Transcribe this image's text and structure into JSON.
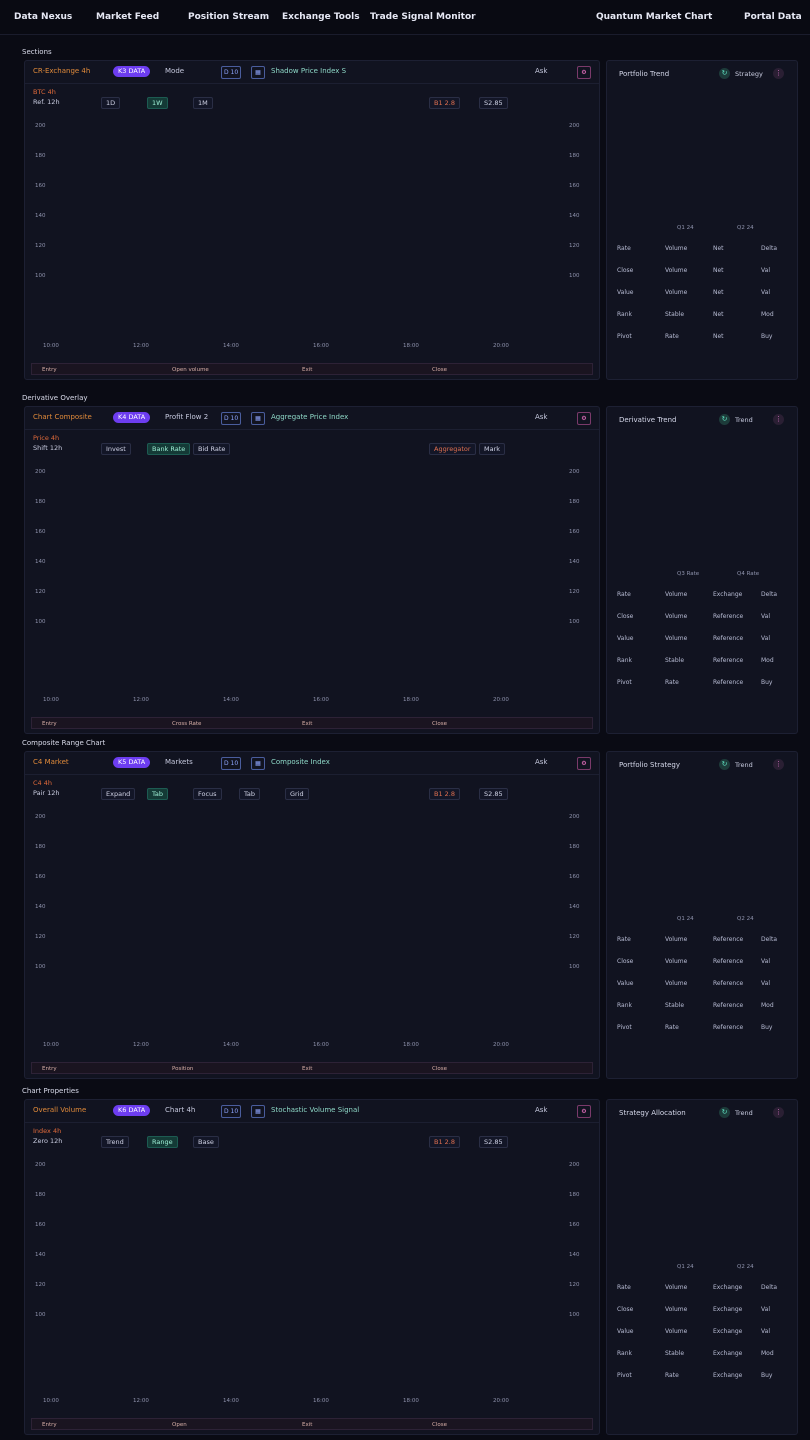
{
  "nav": {
    "items": [
      "Data Nexus",
      "Market Feed",
      "Position Stream",
      "Exchange Tools",
      "Trade Signal Monitor",
      "Quantum Market Chart",
      "Portal Data"
    ]
  },
  "colors": {
    "bg": "#0a0b14",
    "panel": "#111320",
    "purple": "#6d3df0",
    "orange": "#f4a11f",
    "violet": "#8a78ff",
    "green": "#3fe0a0",
    "teal": "#37d9c0",
    "red": "#e04050",
    "pink": "#d24fd0"
  },
  "sections": [
    {
      "title": "Sections",
      "toolbar": {
        "symbol": "CR-Exchange 4h",
        "pill": "K3 DATA",
        "mode": "Mode",
        "mode_val": "D 10",
        "series": "Shadow Price Index S",
        "ask": "Ask"
      },
      "info": [
        "BTC 4h",
        "Ref. 12h"
      ],
      "buttons": [
        "1D",
        "1W",
        "1M"
      ],
      "pairs": [
        "B1 2.8",
        "S2.85"
      ],
      "bottom": [
        "Entry",
        "Open volume",
        "Exit",
        "Close"
      ],
      "ylabels": [
        "200",
        "180",
        "160",
        "140",
        "120",
        "100"
      ],
      "xlabels": [
        "10:00",
        "12:00",
        "14:00",
        "16:00",
        "18:00",
        "20:00"
      ],
      "side": {
        "title": "Portfolio Trend",
        "label": "Strategy",
        "foot": [
          "Q1 24",
          "Q2 24"
        ],
        "rows": [
          [
            "Rate",
            "Volume",
            "Net",
            "Delta"
          ],
          [
            "Close",
            "Volume",
            "Net",
            "Val"
          ],
          [
            "Value",
            "Volume",
            "Net",
            "Val"
          ],
          [
            "Rank",
            "Stable",
            "Net",
            "Mod"
          ],
          [
            "Pivot",
            "Rate",
            "Net",
            "Buy"
          ]
        ]
      }
    },
    {
      "title": "Derivative Overlay",
      "toolbar": {
        "symbol": "Chart Composite",
        "pill": "K4 DATA",
        "mode": "Profit Flow 2",
        "mode_val": "D 10",
        "series": "Aggregate Price Index",
        "ask": "Ask"
      },
      "info": [
        "Price 4h",
        "Shift 12h"
      ],
      "buttons": [
        "Invest",
        "Bank Rate",
        "Bid Rate"
      ],
      "pairs": [
        "Aggregator",
        "Mark"
      ],
      "bottom": [
        "Entry",
        "Cross Rate",
        "Exit",
        "Close"
      ],
      "ylabels": [
        "200",
        "180",
        "160",
        "140",
        "120",
        "100"
      ],
      "xlabels": [
        "10:00",
        "12:00",
        "14:00",
        "16:00",
        "18:00",
        "20:00"
      ],
      "side": {
        "title": "Derivative Trend",
        "label": "Trend",
        "foot": [
          "Q3 Rate",
          "Q4 Rate"
        ],
        "rows": [
          [
            "Rate",
            "Volume",
            "Exchange",
            "Delta"
          ],
          [
            "Close",
            "Volume",
            "Reference",
            "Val"
          ],
          [
            "Value",
            "Volume",
            "Reference",
            "Val"
          ],
          [
            "Rank",
            "Stable",
            "Reference",
            "Mod"
          ],
          [
            "Pivot",
            "Rate",
            "Reference",
            "Buy"
          ]
        ]
      }
    },
    {
      "title": "Composite Range Chart",
      "toolbar": {
        "symbol": "C4 Market",
        "pill": "K5 DATA",
        "mode": "Markets",
        "mode_val": "D 10",
        "series": "Composite Index",
        "ask": "Ask"
      },
      "info": [
        "C4 4h",
        "Pair 12h"
      ],
      "buttons": [
        "Expand",
        "Tab",
        "Focus",
        "Tab",
        "Grid"
      ],
      "pairs": [
        "B1 2.8",
        "S2.85"
      ],
      "bottom": [
        "Entry",
        "Position",
        "Exit",
        "Close"
      ],
      "ylabels": [
        "200",
        "180",
        "160",
        "140",
        "120",
        "100"
      ],
      "xlabels": [
        "10:00",
        "12:00",
        "14:00",
        "16:00",
        "18:00",
        "20:00"
      ],
      "side": {
        "title": "Portfolio Strategy",
        "label": "Trend",
        "foot": [
          "Q1 24",
          "Q2 24"
        ],
        "rows": [
          [
            "Rate",
            "Volume",
            "Reference",
            "Delta"
          ],
          [
            "Close",
            "Volume",
            "Reference",
            "Val"
          ],
          [
            "Value",
            "Volume",
            "Reference",
            "Val"
          ],
          [
            "Rank",
            "Stable",
            "Reference",
            "Mod"
          ],
          [
            "Pivot",
            "Rate",
            "Reference",
            "Buy"
          ]
        ]
      }
    },
    {
      "title": "Chart Properties",
      "toolbar": {
        "symbol": "Overall Volume",
        "pill": "K6 DATA",
        "mode": "Chart 4h",
        "mode_val": "D 10",
        "series": "Stochastic Volume Signal",
        "ask": "Ask"
      },
      "info": [
        "Index 4h",
        "Zero 12h"
      ],
      "buttons": [
        "Trend",
        "Range",
        "Base"
      ],
      "pairs": [
        "B1 2.8",
        "S2.85"
      ],
      "bottom": [
        "Entry",
        "Open",
        "Exit",
        "Close"
      ],
      "ylabels": [
        "200",
        "180",
        "160",
        "140",
        "120",
        "100"
      ],
      "xlabels": [
        "10:00",
        "12:00",
        "14:00",
        "16:00",
        "18:00",
        "20:00"
      ],
      "side": {
        "title": "Strategy Allocation",
        "label": "Trend",
        "foot": [
          "Q1 24",
          "Q2 24"
        ],
        "rows": [
          [
            "Rate",
            "Volume",
            "Exchange",
            "Delta"
          ],
          [
            "Close",
            "Volume",
            "Exchange",
            "Val"
          ],
          [
            "Value",
            "Volume",
            "Exchange",
            "Val"
          ],
          [
            "Rank",
            "Stable",
            "Exchange",
            "Mod"
          ],
          [
            "Pivot",
            "Rate",
            "Exchange",
            "Buy"
          ]
        ]
      }
    }
  ]
}
